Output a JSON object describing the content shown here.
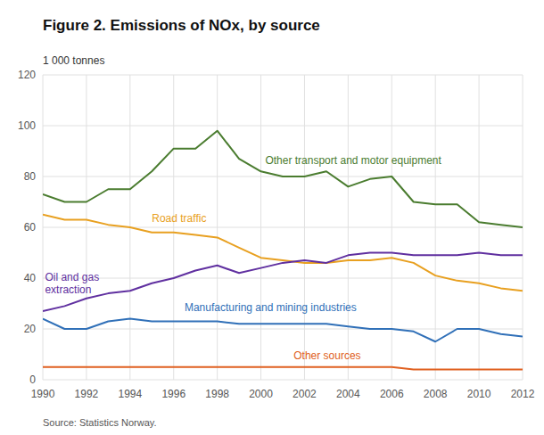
{
  "chart_data": {
    "type": "line",
    "title": "Figure 2. Emissions of NOx, by source",
    "y_label": "1 000 tonnes",
    "source": "Source: Statistics Norway.",
    "x": [
      1990,
      1991,
      1992,
      1993,
      1994,
      1995,
      1996,
      1997,
      1998,
      1999,
      2000,
      2001,
      2002,
      2003,
      2004,
      2005,
      2006,
      2007,
      2008,
      2009,
      2010,
      2011,
      2012
    ],
    "series": [
      {
        "color": "#4a7c2f",
        "values": [
          73,
          70,
          70,
          75,
          75,
          82,
          91,
          91,
          98,
          87,
          82,
          80,
          80,
          82,
          76,
          79,
          80,
          70,
          69,
          69,
          62,
          61,
          60
        ]
      },
      {
        "color": "#e8a020",
        "values": [
          65,
          63,
          63,
          61,
          60,
          58,
          58,
          57,
          56,
          52,
          48,
          47,
          46,
          46,
          47,
          47,
          48,
          46,
          41,
          39,
          38,
          36,
          35
        ]
      },
      {
        "color": "#6030a0",
        "values": [
          27,
          29,
          32,
          34,
          35,
          38,
          40,
          43,
          45,
          42,
          44,
          46,
          47,
          46,
          49,
          50,
          50,
          49,
          49,
          49,
          50,
          49,
          49
        ]
      },
      {
        "color": "#3070b8",
        "values": [
          24,
          20,
          20,
          23,
          24,
          23,
          23,
          23,
          23,
          22,
          22,
          22,
          22,
          22,
          21,
          20,
          20,
          19,
          15,
          20,
          20,
          18,
          17
        ]
      },
      {
        "color": "#e06020",
        "values": [
          5,
          5,
          5,
          5,
          5,
          5,
          5,
          5,
          5,
          5,
          5,
          5,
          5,
          5,
          5,
          5,
          5,
          4,
          4,
          4,
          4,
          4,
          4
        ]
      }
    ],
    "annotations": [
      {
        "text": "Other transport and motor equipment",
        "x": 2000.2,
        "y": 84,
        "color": "#4a7c2f"
      },
      {
        "text": "Road traffic",
        "x": 1995.0,
        "y": 61,
        "color": "#e8a020"
      },
      {
        "text": "Oil and gas\nextraction",
        "x": 1990.1,
        "y": 33,
        "color": "#6030a0"
      },
      {
        "text": "Manufacturing and mining industries",
        "x": 1996.5,
        "y": 26,
        "color": "#3070b8"
      },
      {
        "text": "Other sources",
        "x": 2001.5,
        "y": 7,
        "color": "#e06020"
      }
    ],
    "xlim": [
      1990,
      2012
    ],
    "ylim": [
      0,
      120
    ],
    "xticks": [
      1990,
      1992,
      1994,
      1996,
      1998,
      2000,
      2002,
      2004,
      2006,
      2008,
      2010,
      2012
    ],
    "yticks": [
      0,
      20,
      40,
      60,
      80,
      100,
      120
    ],
    "grid": true
  }
}
